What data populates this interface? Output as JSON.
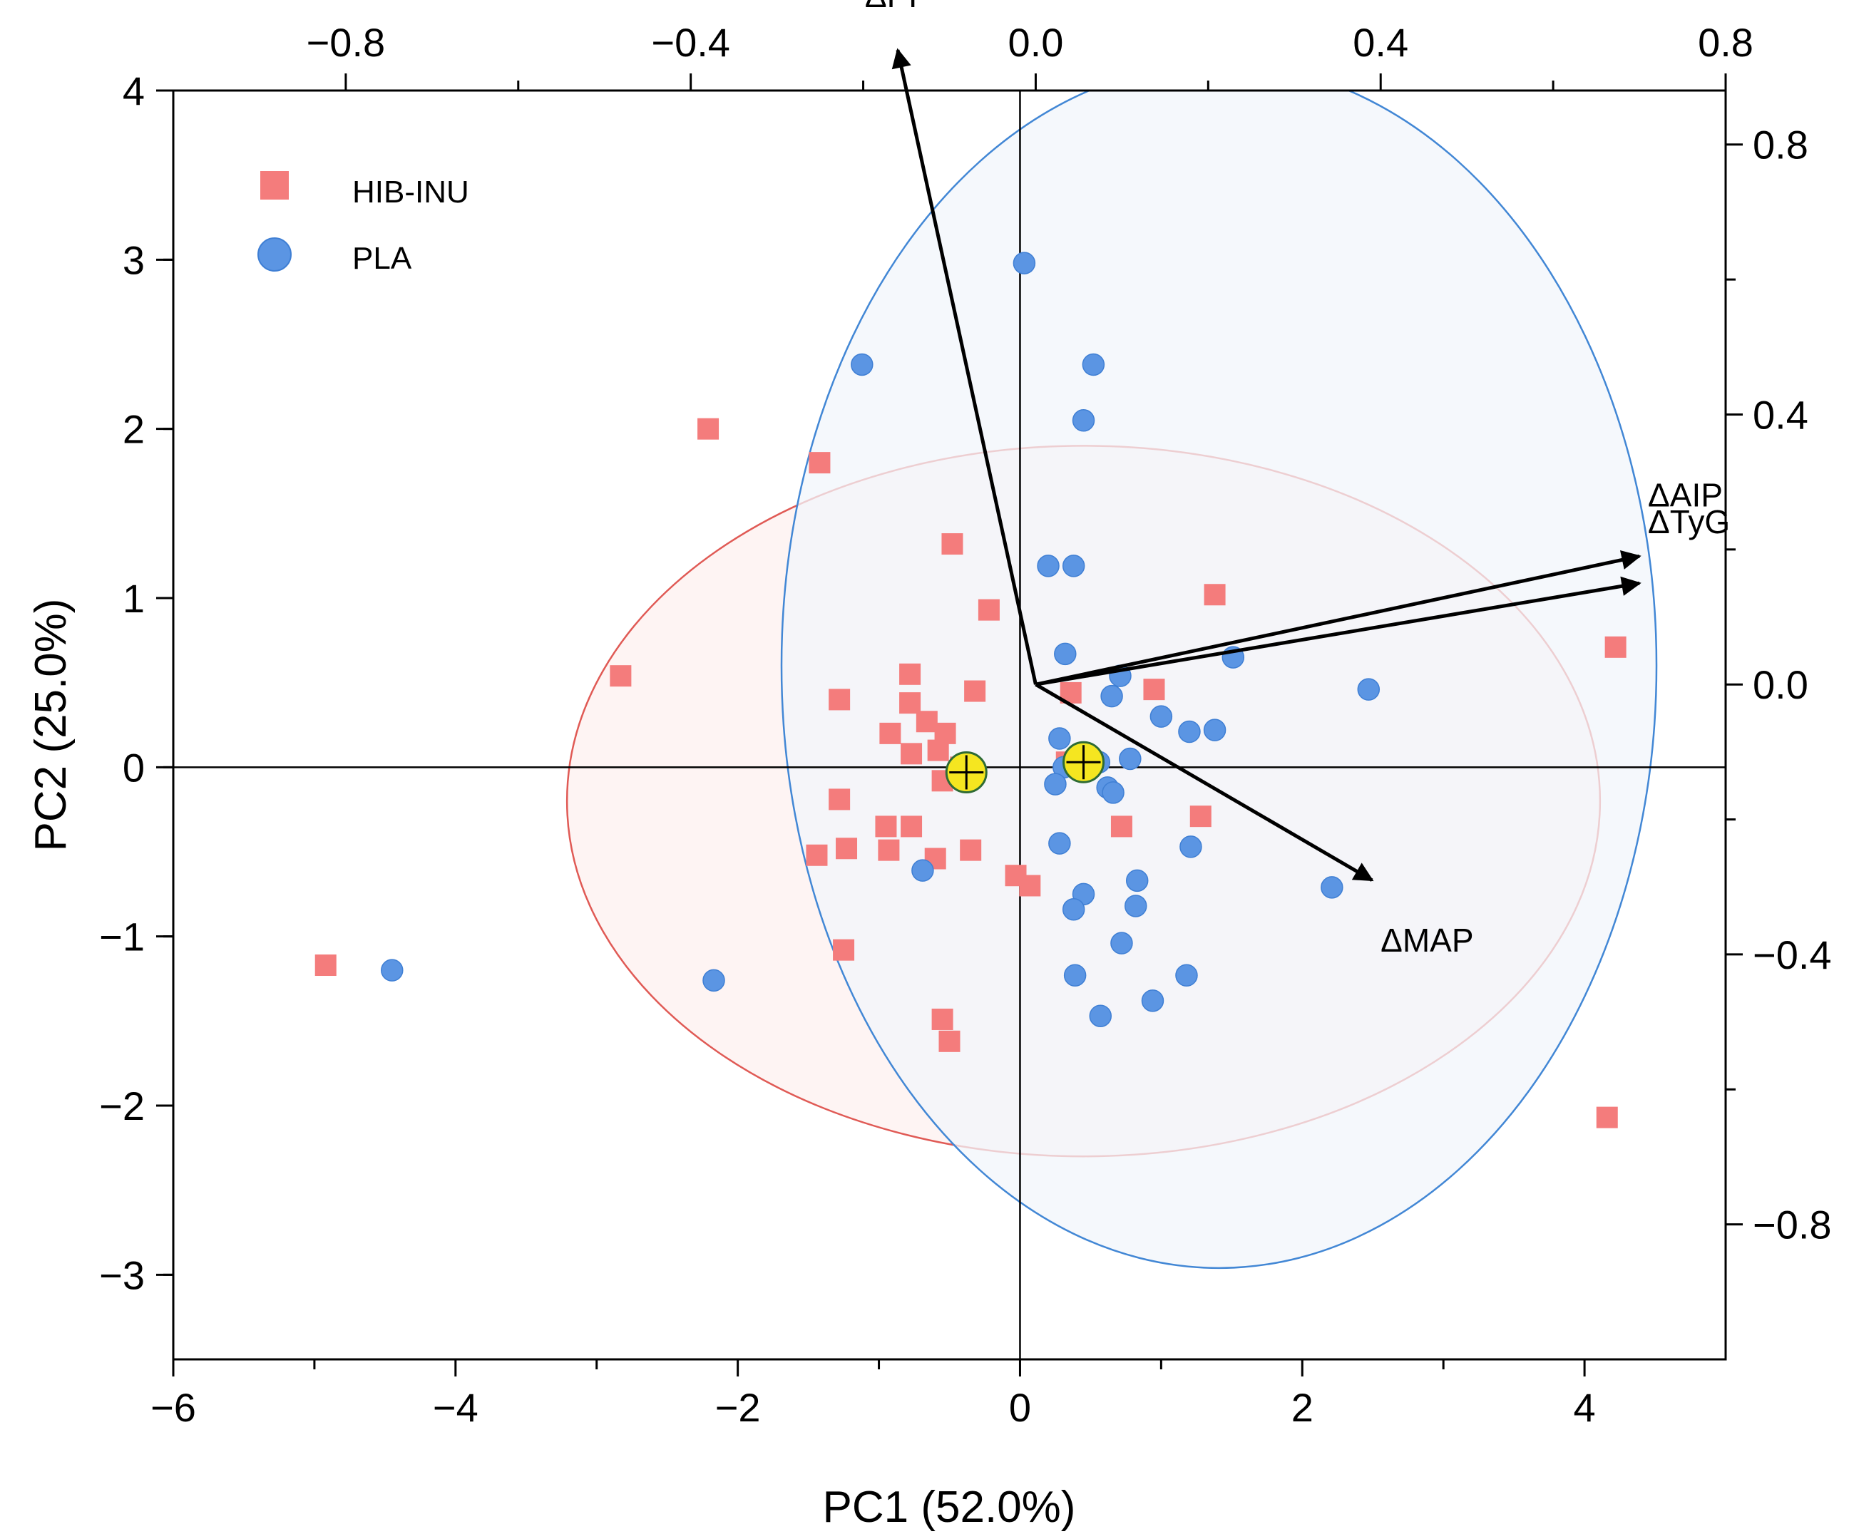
{
  "chart_data": {
    "type": "scatter",
    "subtype": "pca-biplot",
    "title": "",
    "xlabel": "PC1 (52.0%)",
    "ylabel": "PC2 (25.0%)",
    "xlim": [
      -6,
      5
    ],
    "ylim": [
      -3.5,
      4
    ],
    "xticks": [
      -6,
      -4,
      -2,
      0,
      2,
      4
    ],
    "yticks": [
      -3,
      -2,
      -1,
      0,
      1,
      2,
      3,
      4
    ],
    "x2lim": [
      -1.0,
      0.8
    ],
    "y2lim": [
      -1.0,
      0.88
    ],
    "x2ticks": [
      -0.8,
      -0.4,
      0.0,
      0.4,
      0.8
    ],
    "y2ticks": [
      -0.8,
      -0.4,
      0.0,
      0.4,
      0.8
    ],
    "tick_labels": {
      "x": [
        "−6",
        "−4",
        "−2",
        "0",
        "2",
        "4"
      ],
      "y": [
        "−3",
        "−2",
        "−1",
        "0",
        "1",
        "2",
        "3",
        "4"
      ],
      "x2": [
        "−0.8",
        "−0.4",
        "0.0",
        "0.4",
        "0.8"
      ],
      "y2": [
        "−0.8",
        "−0.4",
        "0.0",
        "0.4",
        "0.8"
      ]
    },
    "grid": false,
    "legend_position": "top-left",
    "series": [
      {
        "name": "HIB-INU",
        "marker": "square",
        "color": "#f47c7c",
        "centroid": [
          -0.38,
          -0.03
        ],
        "ellipse": {
          "cx": 0.45,
          "cy": -0.2,
          "rx": 3.66,
          "ry": 2.1,
          "fill": "#fdf0ef",
          "stroke": "#e05a55"
        },
        "points": [
          [
            -4.92,
            -1.17
          ],
          [
            -2.21,
            2.0
          ],
          [
            -1.42,
            1.8
          ],
          [
            -2.83,
            0.54
          ],
          [
            -0.48,
            1.32
          ],
          [
            -0.22,
            0.93
          ],
          [
            -1.28,
            0.4
          ],
          [
            -0.78,
            0.55
          ],
          [
            -0.78,
            0.38
          ],
          [
            -0.66,
            0.27
          ],
          [
            -0.53,
            0.2
          ],
          [
            -0.32,
            0.45
          ],
          [
            -0.92,
            0.2
          ],
          [
            -0.77,
            0.08
          ],
          [
            -0.58,
            0.1
          ],
          [
            -1.28,
            -0.19
          ],
          [
            -0.95,
            -0.35
          ],
          [
            -0.77,
            -0.35
          ],
          [
            -1.44,
            -0.52
          ],
          [
            -1.23,
            -0.48
          ],
          [
            -0.93,
            -0.49
          ],
          [
            -0.6,
            -0.54
          ],
          [
            -0.35,
            -0.49
          ],
          [
            -0.55,
            -0.08
          ],
          [
            -0.35,
            -0.03
          ],
          [
            -0.42,
            0.0
          ],
          [
            -0.03,
            -0.64
          ],
          [
            0.07,
            -0.7
          ],
          [
            -1.25,
            -1.08
          ],
          [
            -0.55,
            -1.49
          ],
          [
            -0.5,
            -1.62
          ],
          [
            0.36,
            0.44
          ],
          [
            0.95,
            0.46
          ],
          [
            1.38,
            1.02
          ],
          [
            0.72,
            -0.35
          ],
          [
            1.28,
            -0.29
          ],
          [
            0.33,
            0.03
          ],
          [
            4.22,
            0.71
          ],
          [
            4.16,
            -2.07
          ]
        ]
      },
      {
        "name": "PLA",
        "marker": "circle",
        "color": "#5b95e3",
        "centroid": [
          0.45,
          0.03
        ],
        "ellipse": {
          "cx": 1.41,
          "cy": 0.6,
          "rx": 3.1,
          "ry": 3.56,
          "fill": "#f1f5fb",
          "stroke": "#4287d5"
        },
        "points": [
          [
            0.03,
            2.98
          ],
          [
            -1.12,
            2.38
          ],
          [
            0.52,
            2.38
          ],
          [
            0.45,
            2.05
          ],
          [
            0.2,
            1.19
          ],
          [
            0.38,
            1.19
          ],
          [
            0.32,
            0.67
          ],
          [
            0.71,
            0.54
          ],
          [
            0.65,
            0.42
          ],
          [
            1.0,
            0.3
          ],
          [
            1.2,
            0.21
          ],
          [
            1.38,
            0.22
          ],
          [
            1.51,
            0.65
          ],
          [
            2.47,
            0.46
          ],
          [
            0.28,
            0.17
          ],
          [
            0.78,
            0.05
          ],
          [
            0.56,
            0.03
          ],
          [
            0.45,
            -0.02
          ],
          [
            0.31,
            0.0
          ],
          [
            0.62,
            -0.12
          ],
          [
            0.66,
            -0.15
          ],
          [
            0.25,
            -0.1
          ],
          [
            0.28,
            -0.45
          ],
          [
            1.21,
            -0.47
          ],
          [
            2.21,
            -0.71
          ],
          [
            0.83,
            -0.67
          ],
          [
            0.45,
            -0.75
          ],
          [
            0.82,
            -0.82
          ],
          [
            0.38,
            -0.84
          ],
          [
            0.72,
            -1.04
          ],
          [
            0.39,
            -1.23
          ],
          [
            1.18,
            -1.23
          ],
          [
            0.94,
            -1.38
          ],
          [
            0.57,
            -1.47
          ],
          [
            -0.69,
            -0.61
          ],
          [
            -2.17,
            -1.26
          ],
          [
            -4.45,
            -1.2
          ]
        ]
      }
    ],
    "loadings": [
      {
        "label": "ΔPP",
        "x": -0.16,
        "y": 0.94
      },
      {
        "label": "ΔAIP",
        "x": 0.7,
        "y": 0.19
      },
      {
        "label": "ΔTyG",
        "x": 0.7,
        "y": 0.15
      },
      {
        "label": "ΔMAP",
        "x": 0.39,
        "y": -0.29
      }
    ],
    "centroid_marker_color": "#f5e620"
  }
}
